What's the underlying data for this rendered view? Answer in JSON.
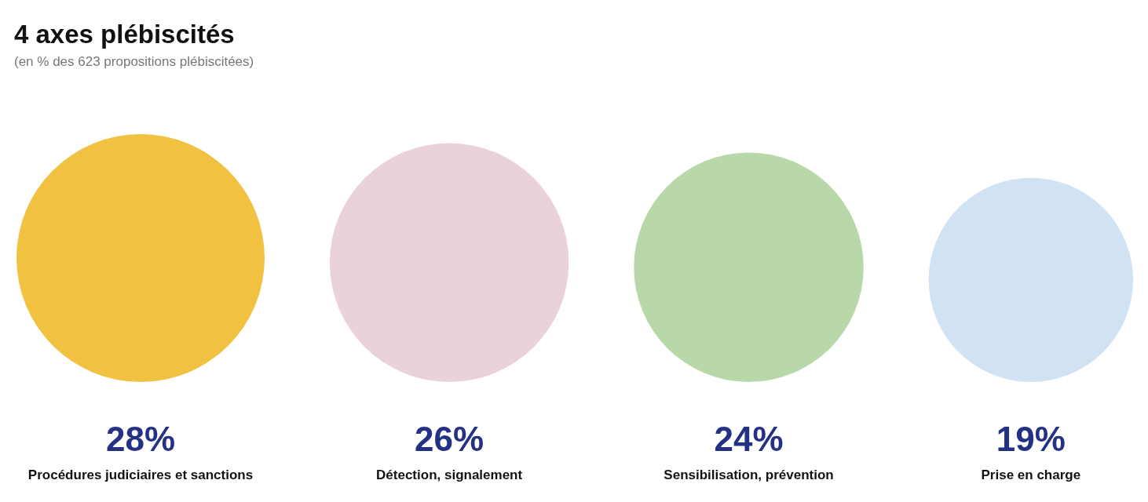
{
  "chart_data": {
    "type": "other",
    "title": "4 axes plébiscités",
    "subtitle": "(en % des 623 propositions plébiscitées)",
    "categories": [
      "Procédures judiciaires et sanctions",
      "Détection, signalement",
      "Sensibilisation, prévention",
      "Prise en charge"
    ],
    "values": [
      28,
      26,
      24,
      19
    ],
    "value_labels": [
      "28%",
      "26%",
      "24%",
      "19%"
    ],
    "colors": [
      "#f1c142",
      "#e9d2dc",
      "#b8d8a9",
      "#d1e2f2"
    ]
  }
}
